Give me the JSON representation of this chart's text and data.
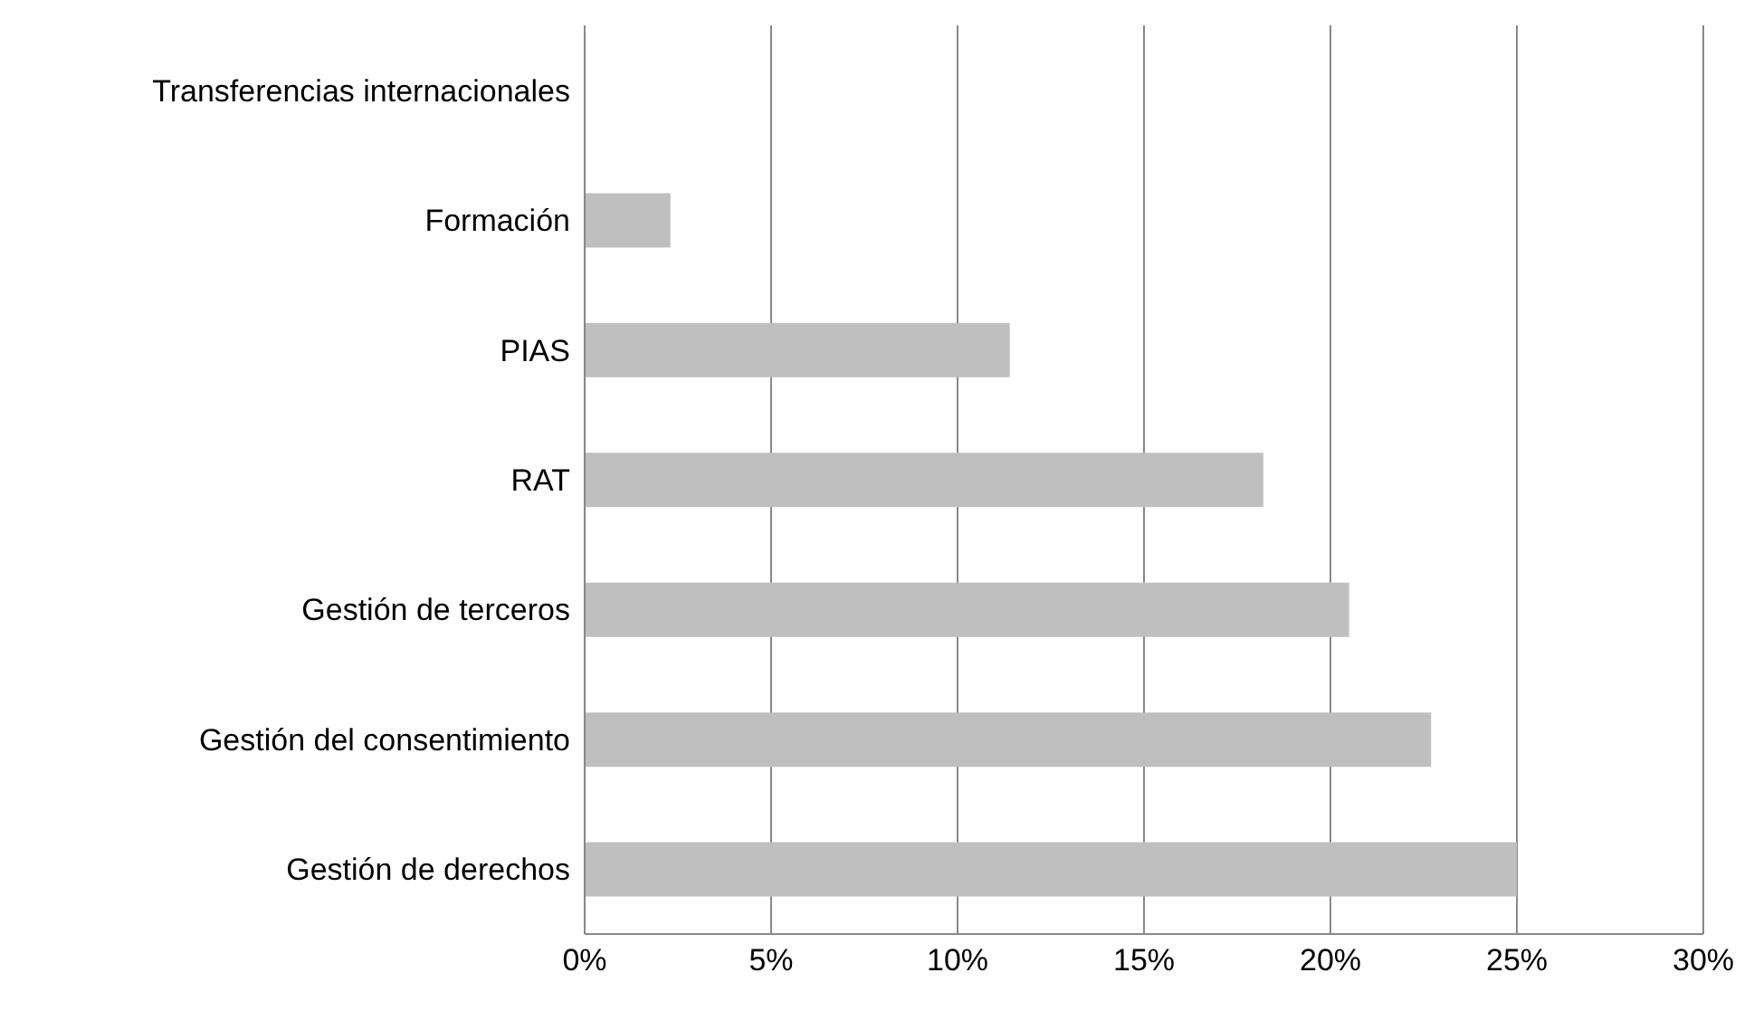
{
  "chart_data": {
    "type": "bar",
    "orientation": "horizontal",
    "categories": [
      "Transferencias internacionales",
      "Formación",
      "PIAS",
      "RAT",
      "Gestión de terceros",
      "Gestión del consentimiento",
      "Gestión de derechos"
    ],
    "values": [
      0,
      2.3,
      11.4,
      18.2,
      20.5,
      22.7,
      25
    ],
    "color": "#bfbfbf",
    "xlim": [
      0,
      30
    ],
    "xticks": [
      {
        "value": 0,
        "label": "0%"
      },
      {
        "value": 5,
        "label": "5%"
      },
      {
        "value": 10,
        "label": "10%"
      },
      {
        "value": 15,
        "label": "15%"
      },
      {
        "value": 20,
        "label": "20%"
      },
      {
        "value": 25,
        "label": "25%"
      },
      {
        "value": 30,
        "label": "30%"
      }
    ],
    "grid": "x",
    "legend": false
  }
}
